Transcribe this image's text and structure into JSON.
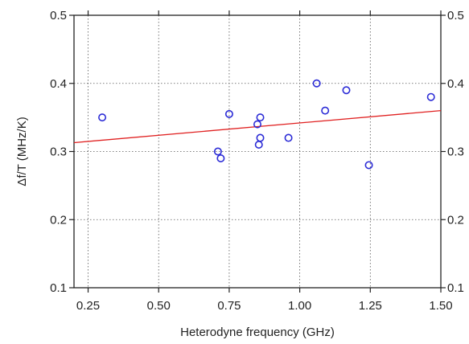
{
  "chart_data": {
    "type": "scatter",
    "xlabel": "Heterodyne frequency (GHz)",
    "ylabel": "Δf/T (MHz/K)",
    "xlim": [
      0.2,
      1.5
    ],
    "ylim": [
      0.1,
      0.5
    ],
    "xticks": [
      0.25,
      0.5,
      0.75,
      1.0,
      1.25,
      1.5
    ],
    "xtick_labels": [
      "0.25",
      "0.50",
      "0.75",
      "1.00",
      "1.25",
      "1.50"
    ],
    "yticks": [
      0.1,
      0.2,
      0.3,
      0.4,
      0.5
    ],
    "ytick_labels": [
      "0.1",
      "0.2",
      "0.3",
      "0.4",
      "0.5"
    ],
    "grid": true,
    "grid_style": "dotted",
    "right_axis_labels": true,
    "series": [
      {
        "marker": "open-circle",
        "color": "#2b2bd6",
        "x": [
          0.3,
          0.71,
          0.72,
          0.75,
          0.85,
          0.855,
          0.86,
          0.86,
          0.96,
          1.06,
          1.09,
          1.165,
          1.245,
          1.465
        ],
        "y": [
          0.35,
          0.3,
          0.29,
          0.355,
          0.34,
          0.31,
          0.32,
          0.35,
          0.32,
          0.4,
          0.36,
          0.39,
          0.28,
          0.38
        ]
      }
    ],
    "fit_line": {
      "color": "#e02020",
      "x": [
        0.2,
        1.5
      ],
      "y": [
        0.313,
        0.36
      ]
    }
  }
}
